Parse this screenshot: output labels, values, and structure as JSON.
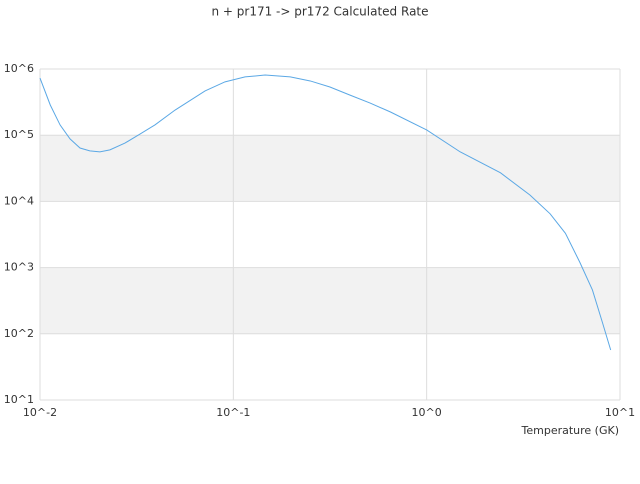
{
  "chart_data": {
    "type": "line",
    "title": "n + pr171 -> pr172 Calculated Rate",
    "x_label": "Temperature (GK)",
    "log_x": true,
    "log_y": true,
    "grid": true,
    "x": [
      0.01,
      0.0113,
      0.0127,
      0.0143,
      0.0161,
      0.0181,
      0.0204,
      0.023,
      0.0275,
      0.0329,
      0.0393,
      0.05,
      0.0714,
      0.0906,
      0.115,
      0.146,
      0.197,
      0.25,
      0.316,
      0.4,
      0.51,
      0.65,
      1.0,
      1.49,
      2.41,
      3.42,
      4.35,
      5.22,
      6.2,
      7.2,
      8.1,
      8.95
    ],
    "series": [
      {
        "color": "#5ba8e5",
        "values": [
          730000,
          286000,
          143000,
          88000,
          64000,
          58000,
          56000,
          60000,
          76000,
          104000,
          143000,
          240000,
          466000,
          640000,
          760000,
          810000,
          760000,
          660000,
          535000,
          405000,
          306000,
          224000,
          120000,
          56000,
          27000,
          12500,
          6500,
          3300,
          1200,
          460,
          150,
          57
        ]
      }
    ],
    "xlim": [
      0.01,
      10
    ],
    "xticks": [
      {
        "value": 0.01,
        "label": "10^-2"
      },
      {
        "value": 0.1,
        "label": "10^-1"
      },
      {
        "value": 1,
        "label": "10^0"
      },
      {
        "value": 10,
        "label": "10^1"
      }
    ],
    "ylim": [
      10,
      1000000
    ],
    "yticks": [
      {
        "value": 10,
        "label": "10^1"
      },
      {
        "value": 100,
        "label": "10^2"
      },
      {
        "value": 1000,
        "label": "10^3"
      },
      {
        "value": 10000,
        "label": "10^4"
      },
      {
        "value": 100000,
        "label": "10^5"
      },
      {
        "value": 1000000,
        "label": "10^6"
      }
    ]
  }
}
